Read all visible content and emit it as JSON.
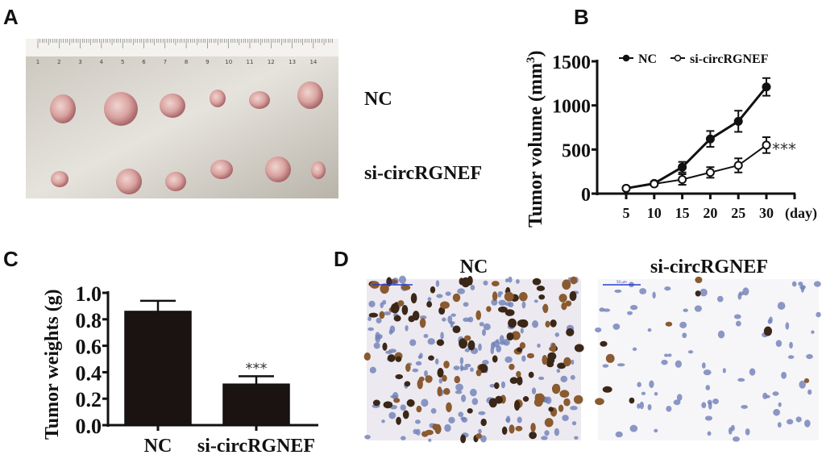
{
  "panels": {
    "a": "A",
    "b": "B",
    "c": "C",
    "d": "D"
  },
  "photo_a": {
    "row_labels": [
      "NC",
      "si-circRGNEF"
    ],
    "ruler_numbers": [
      "1",
      "2",
      "3",
      "4",
      "5",
      "6",
      "7",
      "8",
      "9",
      "10",
      "11",
      "12",
      "13",
      "14"
    ]
  },
  "photo_d": {
    "titles": [
      "NC",
      "si-circRGNEF"
    ],
    "scale_bar": "50 μm"
  },
  "chart_data": [
    {
      "type": "line",
      "panel": "B",
      "ylabel": "Tumor volume (mm",
      "ylabel_sup": "3",
      "ylabel_close": ")",
      "xlabel": "(day)",
      "x": [
        5,
        10,
        15,
        20,
        25,
        30
      ],
      "xticks": [
        "5",
        "10",
        "15",
        "20",
        "25",
        "30"
      ],
      "ylim": [
        0,
        1500
      ],
      "yticks": [
        "0",
        "500",
        "1000",
        "1500"
      ],
      "legend": "top",
      "series": [
        {
          "name": "NC",
          "marker": "filled-circle",
          "values": [
            60,
            115,
            300,
            620,
            820,
            1210
          ],
          "errors": [
            15,
            20,
            60,
            90,
            120,
            100
          ]
        },
        {
          "name": "si-circRGNEF",
          "marker": "open-circle",
          "values": [
            60,
            110,
            160,
            240,
            320,
            550
          ],
          "errors": [
            15,
            20,
            60,
            60,
            80,
            90
          ]
        }
      ],
      "annotation": "***"
    },
    {
      "type": "bar",
      "panel": "C",
      "ylabel": "Tumor weights (g)",
      "categories": [
        "NC",
        "si-circRGNEF"
      ],
      "values": [
        0.86,
        0.31
      ],
      "errors": [
        0.08,
        0.06
      ],
      "ylim": [
        0,
        1.0
      ],
      "yticks": [
        "0.0",
        "0.2",
        "0.4",
        "0.6",
        "0.8",
        "1.0"
      ],
      "annotation": "***",
      "bar_color": "#1a1311"
    }
  ]
}
